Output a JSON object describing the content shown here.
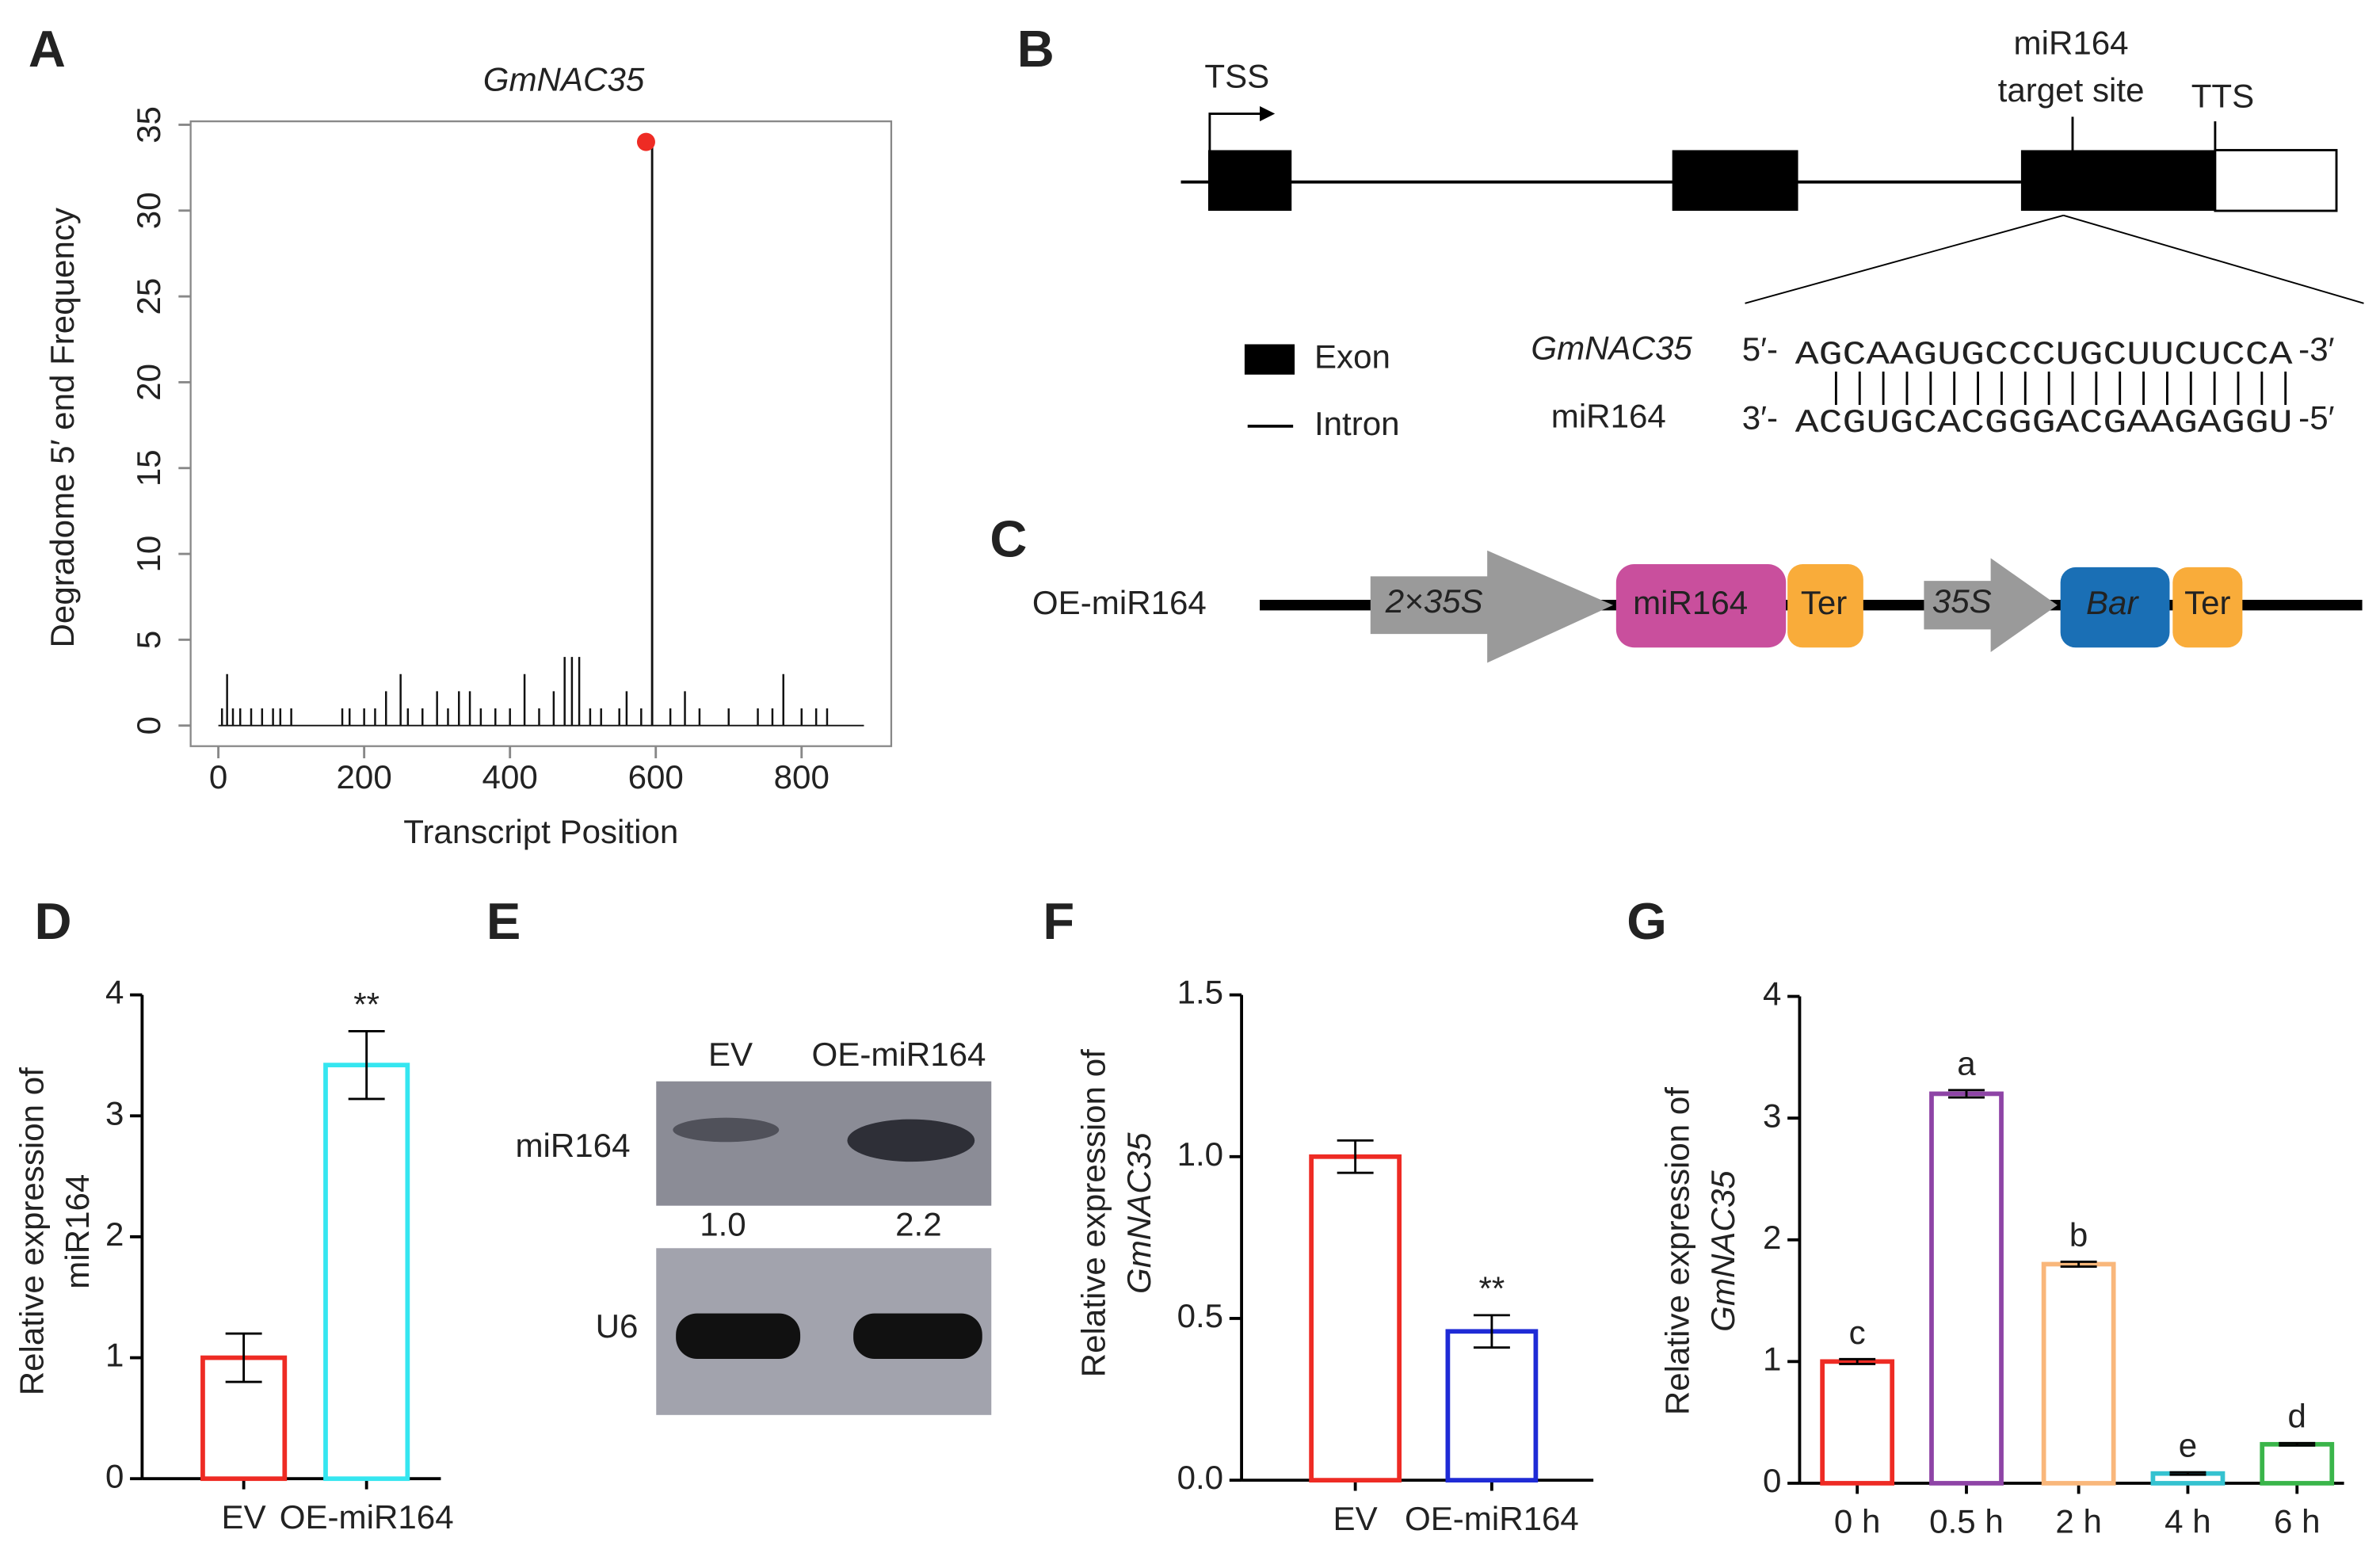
{
  "panels": [
    "A",
    "B",
    "C",
    "D",
    "E",
    "F",
    "G"
  ],
  "chart_data": [
    {
      "type": "spike",
      "title": "GmNAC35",
      "x_label": "Transcript Position",
      "y_label": [
        "Degradome 5′ end Frequency"
      ],
      "x": [
        5,
        12,
        20,
        30,
        45,
        60,
        75,
        85,
        100,
        170,
        180,
        200,
        215,
        230,
        250,
        260,
        280,
        300,
        315,
        330,
        345,
        360,
        380,
        400,
        420,
        440,
        460,
        475,
        485,
        495,
        510,
        525,
        550,
        560,
        580,
        620,
        640,
        660,
        700,
        740,
        760,
        775,
        800,
        820,
        835
      ],
      "values": [
        1,
        3,
        1,
        1,
        1,
        1,
        1,
        1,
        1,
        1,
        1,
        1,
        1,
        2,
        3,
        1,
        1,
        2,
        1,
        2,
        2,
        1,
        1,
        1,
        3,
        1,
        2,
        4,
        4,
        4,
        1,
        1,
        1,
        2,
        1,
        1,
        2,
        1,
        1,
        1,
        1,
        3,
        1,
        1,
        1
      ],
      "marker": {
        "x": 595,
        "value": 34,
        "color": "#ee2b24"
      },
      "color": "#111111",
      "xlim": [
        -38,
        923
      ],
      "ylim": [
        -1.2,
        35.2
      ],
      "xticks": [
        0,
        200,
        400,
        600,
        800
      ],
      "yticks": [
        0,
        5,
        10,
        15,
        20,
        25,
        30,
        35
      ]
    },
    {
      "type": "bar",
      "y_label": [
        "Relative expression of",
        "miR164"
      ],
      "categories": [
        "EV",
        "OE-miR164"
      ],
      "values": [
        1.0,
        3.42
      ],
      "errors": [
        0.2,
        0.28
      ],
      "colors": [
        "#ee2b24",
        "#35e6f0"
      ],
      "annotations": [
        null,
        "**"
      ],
      "ylim": [
        0,
        4
      ],
      "yticks": [
        0,
        1,
        2,
        3,
        4
      ]
    },
    {
      "type": "bar",
      "y_label": [
        "Relative expression of",
        "GmNAC35"
      ],
      "categories": [
        "EV",
        "OE-miR164"
      ],
      "values": [
        1.0,
        0.46
      ],
      "errors": [
        0.05,
        0.05
      ],
      "colors": [
        "#ee2b24",
        "#1f2bd6"
      ],
      "annotations": [
        null,
        "**"
      ],
      "ylim": [
        0,
        1.5
      ],
      "yticks": [
        {
          "value": 0,
          "label": "0.0"
        },
        0.5,
        {
          "value": 1,
          "label": "1.0"
        },
        1.5
      ]
    },
    {
      "type": "bar",
      "y_label": [
        "Relative expression of",
        "GmNAC35"
      ],
      "categories": [
        "0 h",
        "0.5 h",
        "2 h",
        "4 h",
        "6 h"
      ],
      "values": [
        1.0,
        3.2,
        1.8,
        0.08,
        0.32
      ],
      "errors": [
        0.02,
        0.03,
        0.02,
        0.01,
        0.01
      ],
      "colors": [
        "#ee2b24",
        "#8e44a6",
        "#f9b77b",
        "#35c2d0",
        "#3ab54a"
      ],
      "annotations": [
        "c",
        "a",
        "b",
        "e",
        "d"
      ],
      "ylim": [
        0,
        4
      ],
      "yticks": [
        0,
        1,
        2,
        3,
        4
      ]
    }
  ],
  "gene_structure": {
    "tss": "TSS",
    "target": [
      "miR164",
      "target site"
    ],
    "tts": "TTS",
    "legend": [
      "Exon",
      "Intron"
    ],
    "pair": {
      "gene": "GmNAC35",
      "mirna": "miR164",
      "gene_row": [
        "5′-",
        "AGCAAGUGCCCUGCUUCUCCA",
        "-3′"
      ],
      "mirna_row": [
        "3′-",
        "ACGUGCACGGGACGAAGAGGU",
        "-5′"
      ]
    }
  },
  "construct": {
    "name": "OE-miR164",
    "parts": [
      "2×35S",
      "miR164",
      "Ter",
      "35S",
      "Bar",
      "Ter"
    ]
  },
  "blot": {
    "lanes": [
      "EV",
      "OE-miR164"
    ],
    "rows": [
      "miR164",
      "U6"
    ],
    "ratios": [
      "1.0",
      "2.2"
    ]
  }
}
